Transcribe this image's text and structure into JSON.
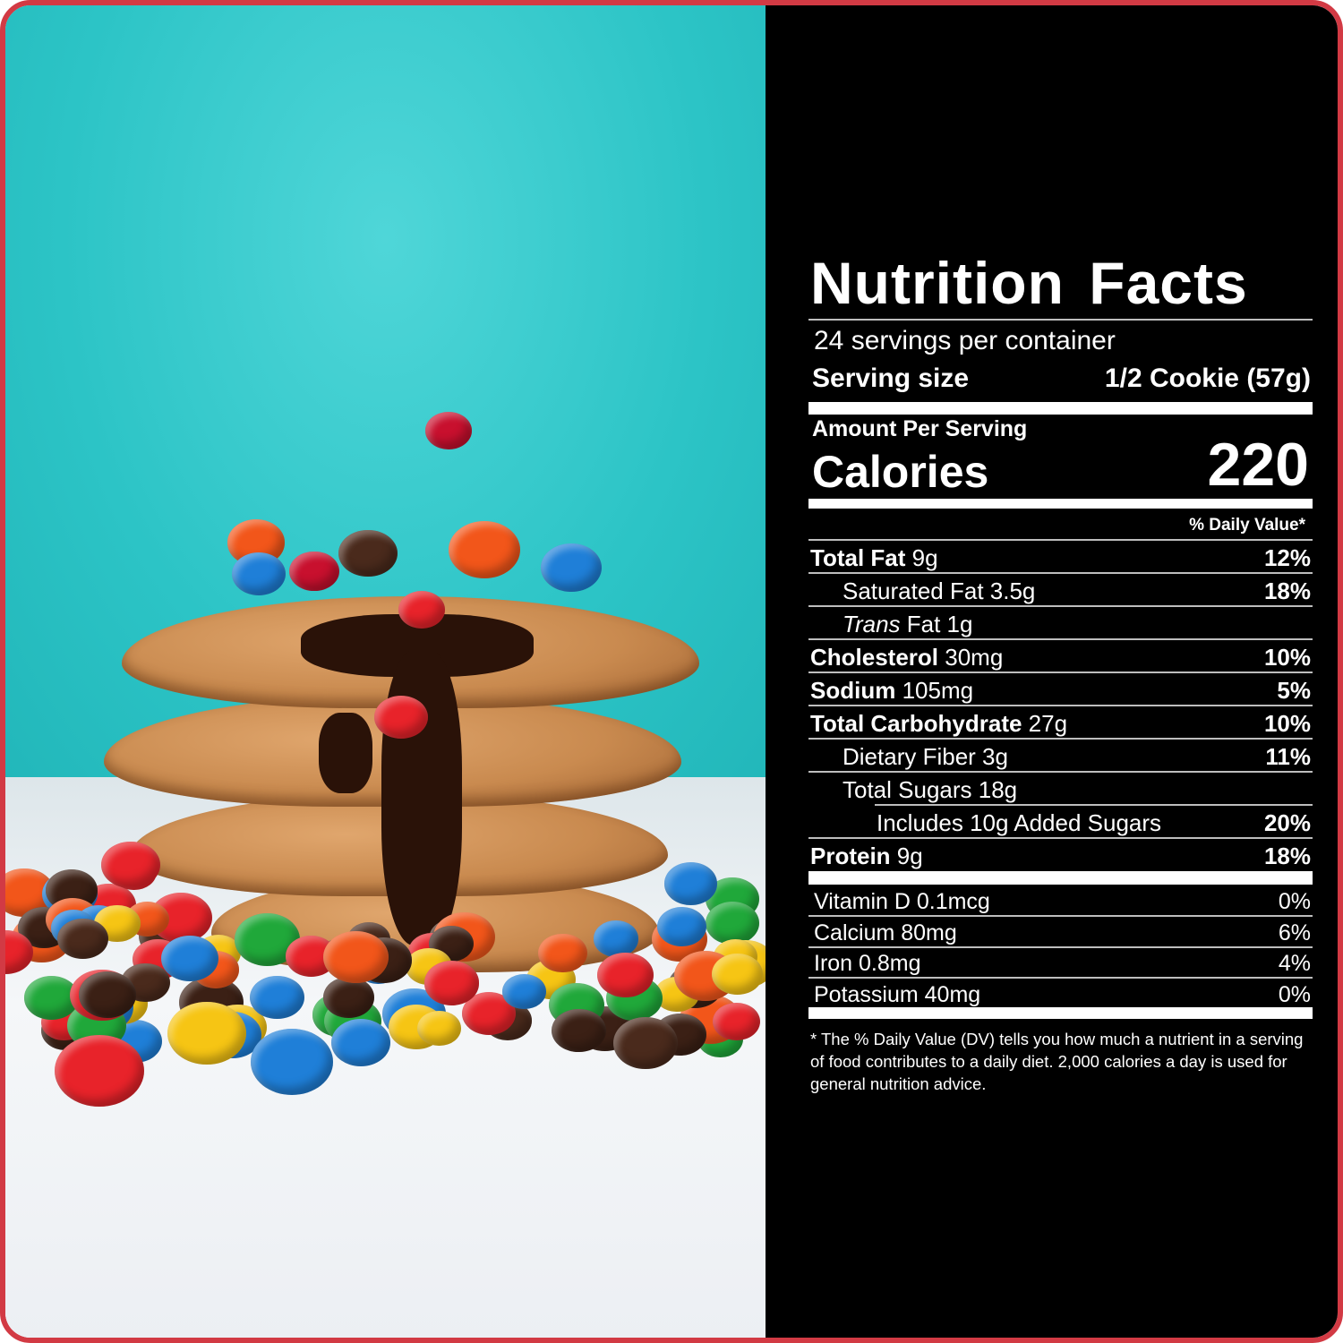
{
  "label": {
    "title": "Nutrition Facts",
    "servings_per_container": "24 servings per container",
    "serving_size_label": "Serving size",
    "serving_size_value": "1/2 Cookie (57g)",
    "amount_per_serving": "Amount Per Serving",
    "calories_label": "Calories",
    "calories_value": "220",
    "daily_value_header": "% Daily Value*",
    "nutrients": [
      {
        "bold": "Total Fat",
        "amount": "9g",
        "dv": "12%",
        "indent": 0
      },
      {
        "bold": "",
        "amount": "Saturated Fat 3.5g",
        "dv": "18%",
        "indent": 1
      },
      {
        "italic": "Trans",
        "amount": "Fat 1g",
        "dv": "",
        "indent": 1
      },
      {
        "bold": "Cholesterol",
        "amount": "30mg",
        "dv": "10%",
        "indent": 0
      },
      {
        "bold": "Sodium",
        "amount": "105mg",
        "dv": "5%",
        "indent": 0
      },
      {
        "bold": "Total Carbohydrate",
        "amount": "27g",
        "dv": "10%",
        "indent": 0
      },
      {
        "bold": "",
        "amount": "Dietary Fiber 3g",
        "dv": "11%",
        "indent": 1
      },
      {
        "bold": "",
        "amount": "Total Sugars 18g",
        "dv": "",
        "indent": 1
      },
      {
        "bold": "",
        "amount": "Includes 10g Added Sugars",
        "dv": "20%",
        "indent": 2
      },
      {
        "bold": "Protein",
        "amount": "9g",
        "dv": "18%",
        "indent": 0
      }
    ],
    "vitamins": [
      {
        "name": "Vitamin D 0.1mcg",
        "dv": "0%"
      },
      {
        "name": "Calcium 80mg",
        "dv": "6%"
      },
      {
        "name": "Iron 0.8mg",
        "dv": "4%"
      },
      {
        "name": "Potassium 40mg",
        "dv": "0%"
      }
    ],
    "footnote": "* The % Daily Value (DV) tells you how much a nutrient in a serving of food contributes to a daily diet. 2,000 calories a day is used for general nutrition advice."
  },
  "colors": {
    "frame": "#d23a44",
    "panel": "#000000",
    "backdrop": "#2fc9cc"
  }
}
